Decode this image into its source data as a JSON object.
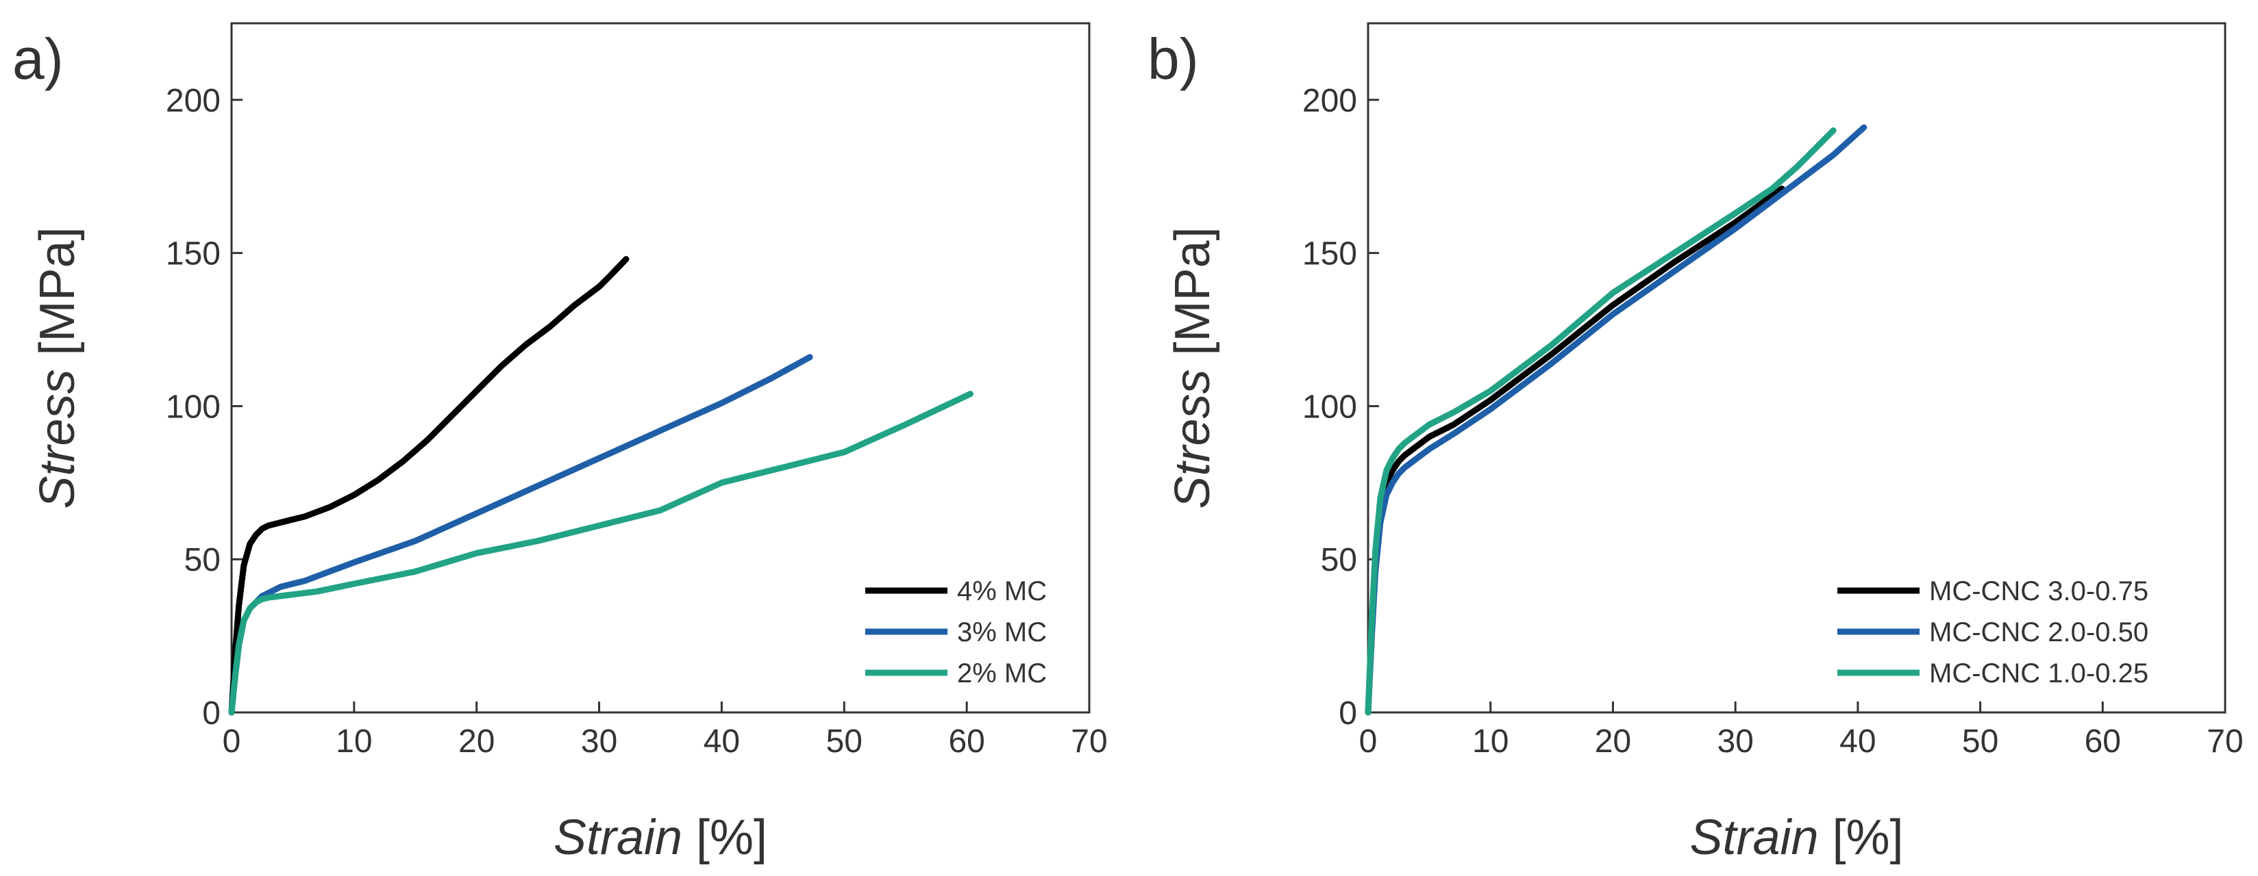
{
  "chart_data": [
    {
      "type": "line",
      "panel_label": "a)",
      "xlabel": {
        "italic": "Strain",
        "unit": " [%]"
      },
      "ylabel": {
        "italic": "Stress",
        "unit": " [MPa]"
      },
      "xlim": [
        0,
        70
      ],
      "ylim": [
        0,
        225
      ],
      "xticks": [
        0,
        10,
        20,
        30,
        40,
        50,
        60,
        70
      ],
      "yticks": [
        0,
        50,
        100,
        150,
        200
      ],
      "grid": false,
      "legend_position": "bottom-right",
      "series": [
        {
          "name": "4% MC",
          "color": "#000000",
          "x": [
            0,
            0.3,
            0.6,
            1.0,
            1.5,
            2.0,
            2.5,
            3.0,
            4.0,
            5.0,
            6.0,
            8.0,
            10.0,
            12.0,
            14.0,
            16.0,
            18.0,
            20.0,
            22.0,
            24.0,
            26.0,
            28.0,
            30.0,
            31.0,
            32.2
          ],
          "y": [
            0,
            20,
            35,
            48,
            55,
            58,
            60,
            61,
            62,
            63,
            64,
            67,
            71,
            76,
            82,
            89,
            97,
            105,
            113,
            120,
            126,
            133,
            139,
            143,
            148
          ]
        },
        {
          "name": "3% MC",
          "color": "#1f5fa8",
          "x": [
            0,
            0.3,
            0.6,
            1.0,
            1.5,
            2.0,
            2.5,
            3.0,
            4.0,
            5.0,
            6.0,
            8.0,
            10.0,
            15.0,
            20.0,
            25.0,
            30.0,
            35.0,
            40.0,
            44.0,
            47.2
          ],
          "y": [
            0,
            12,
            22,
            30,
            34,
            36,
            38,
            39,
            41,
            42,
            43,
            46,
            49,
            56,
            65,
            74,
            83,
            92,
            101,
            109,
            116
          ]
        },
        {
          "name": "2% MC",
          "color": "#22a386",
          "x": [
            0,
            0.3,
            0.6,
            1.0,
            1.5,
            2.0,
            2.5,
            3.0,
            4.0,
            5.0,
            7.0,
            10.0,
            15.0,
            20.0,
            25.0,
            30.0,
            35.0,
            40.0,
            45.0,
            50.0,
            55.0,
            60.3
          ],
          "y": [
            0,
            12,
            22,
            30,
            34,
            36,
            37,
            37.5,
            38,
            38.5,
            39.5,
            42,
            46,
            52,
            56,
            61,
            66,
            75,
            80,
            85,
            94,
            104
          ]
        }
      ]
    },
    {
      "type": "line",
      "panel_label": "b)",
      "xlabel": {
        "italic": "Strain",
        "unit": " [%]"
      },
      "ylabel": {
        "italic": "Stress",
        "unit": " [MPa]"
      },
      "xlim": [
        0,
        70
      ],
      "ylim": [
        0,
        225
      ],
      "xticks": [
        0,
        10,
        20,
        30,
        40,
        50,
        60,
        70
      ],
      "yticks": [
        0,
        50,
        100,
        150,
        200
      ],
      "grid": false,
      "legend_position": "bottom-right",
      "series": [
        {
          "name": "MC-CNC 3.0-0.75",
          "color": "#000000",
          "x": [
            0,
            0.3,
            0.6,
            1.0,
            1.5,
            2.0,
            2.5,
            3.0,
            4.0,
            5.0,
            7.0,
            10.0,
            15.0,
            20.0,
            25.0,
            30.0,
            33.8
          ],
          "y": [
            0,
            28,
            50,
            66,
            75,
            79,
            82,
            84,
            87,
            90,
            94,
            102,
            117,
            133,
            147,
            160,
            171
          ]
        },
        {
          "name": "MC-CNC 2.0-0.50",
          "color": "#1f5fa8",
          "x": [
            0,
            0.3,
            0.6,
            1.0,
            1.5,
            2.0,
            2.5,
            3.0,
            4.0,
            5.0,
            7.0,
            10.0,
            15.0,
            20.0,
            25.0,
            30.0,
            35.0,
            38.0,
            40.5
          ],
          "y": [
            0,
            25,
            46,
            62,
            71,
            75,
            78,
            80,
            83,
            86,
            91,
            99,
            114,
            130,
            144,
            158,
            173,
            182,
            191
          ]
        },
        {
          "name": "MC-CNC 1.0-0.25",
          "color": "#22a386",
          "x": [
            0,
            0.3,
            0.6,
            1.0,
            1.5,
            2.0,
            2.5,
            3.0,
            4.0,
            5.0,
            7.0,
            10.0,
            15.0,
            20.0,
            25.0,
            30.0,
            33.0,
            35.0,
            38.0
          ],
          "y": [
            0,
            30,
            53,
            70,
            79,
            83,
            86,
            88,
            91,
            94,
            98,
            105,
            120,
            137,
            150,
            163,
            171,
            178,
            190
          ]
        }
      ]
    }
  ]
}
